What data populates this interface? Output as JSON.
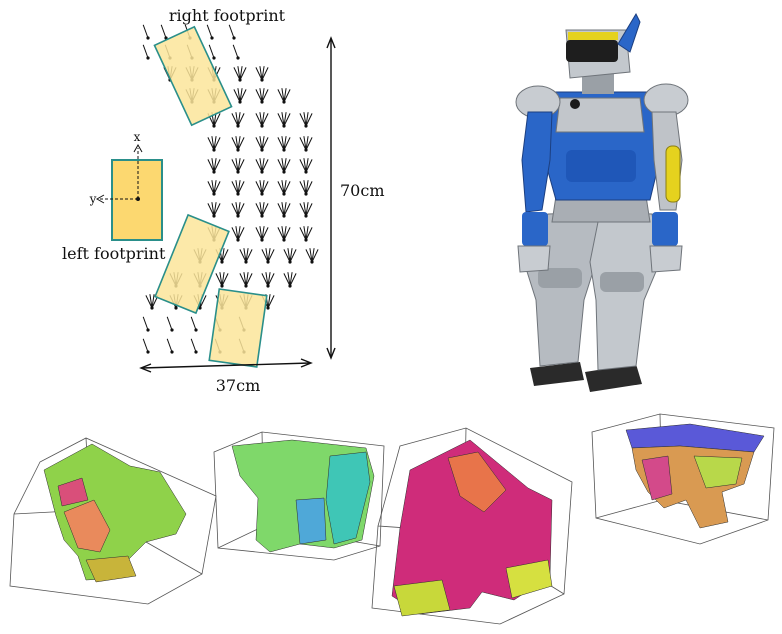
{
  "labels": {
    "right_footprint": "right footprint",
    "left_footprint": "left footprint",
    "height_dim": "70cm",
    "width_dim": "37cm",
    "axis_x": "x",
    "axis_y": "y"
  },
  "colors": {
    "footprint_fill": "#fbe59a",
    "footprint_stroke": "#2a8f8a",
    "ref_fill": "#fcd870",
    "robot_blue": "#2563c9",
    "robot_gray": "#b9bec4",
    "robot_yellow": "#e5d21e",
    "robot_dark": "#1e1e1e"
  },
  "icons": {
    "sample_marker": "fan-glyph",
    "robot": "humanoid-robot-icon",
    "hulls": "swept-volume-mesh"
  },
  "hulls": [
    {
      "name": "hull-1",
      "palette": [
        "#9fdc4c",
        "#6fbf3c",
        "#e98a5c",
        "#d94f7a"
      ]
    },
    {
      "name": "hull-2",
      "palette": [
        "#3fd1b8",
        "#8fe060",
        "#4fa8d8",
        "#b8e870"
      ]
    },
    {
      "name": "hull-3",
      "palette": [
        "#d32a7a",
        "#e8744a",
        "#c8d83a",
        "#b91f6e"
      ]
    },
    {
      "name": "hull-4",
      "palette": [
        "#5a59d8",
        "#e89a4a",
        "#c8e04a",
        "#d34a8a"
      ]
    }
  ]
}
